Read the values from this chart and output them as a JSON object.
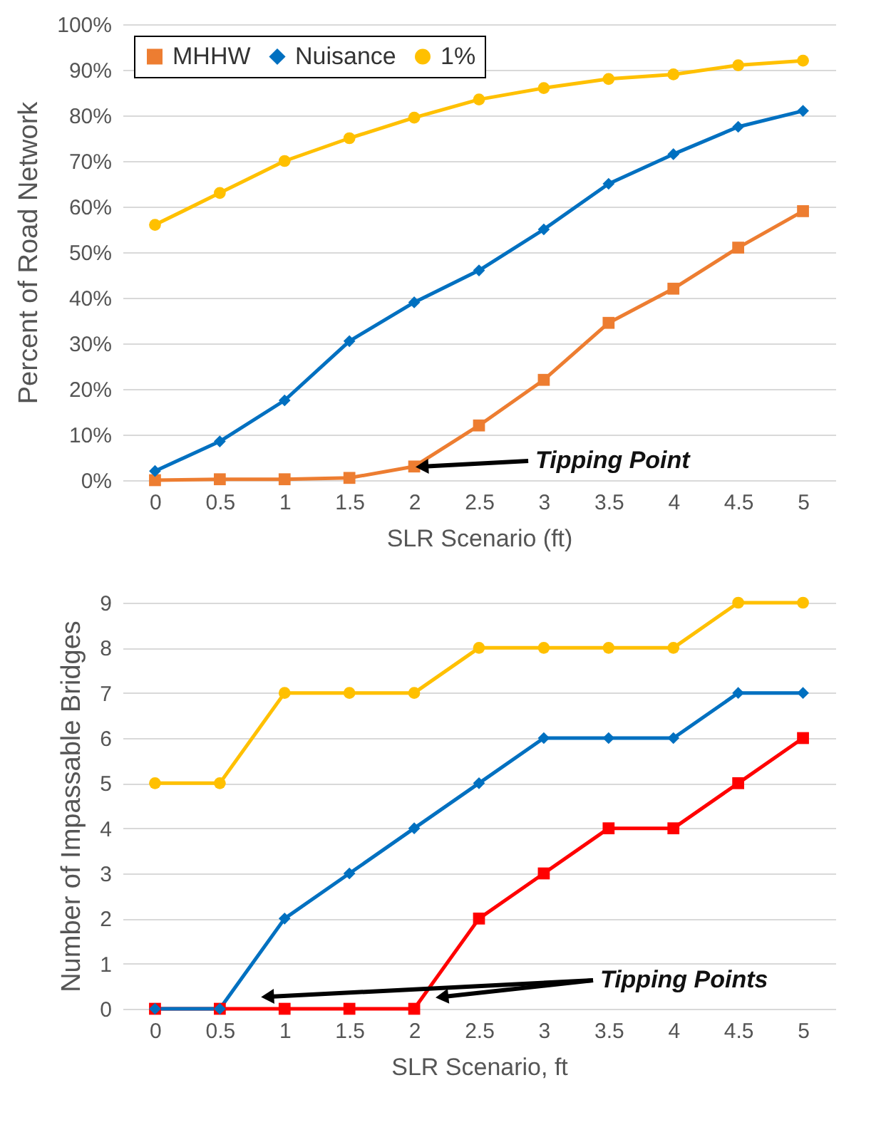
{
  "chart_data": [
    {
      "type": "line",
      "xlabel": "SLR Scenario (ft)",
      "ylabel": "Percent of Road Network",
      "x": [
        0,
        0.5,
        1,
        1.5,
        2,
        2.5,
        3,
        3.5,
        4,
        4.5,
        5
      ],
      "xlim": [
        -0.25,
        5.25
      ],
      "xticks": [
        0,
        0.5,
        1,
        1.5,
        2,
        2.5,
        3,
        3.5,
        4,
        4.5,
        5
      ],
      "ylim": [
        0,
        100
      ],
      "yticks": [
        {
          "value": 0,
          "label": "0%"
        },
        {
          "value": 10,
          "label": "10%"
        },
        {
          "value": 20,
          "label": "20%"
        },
        {
          "value": 30,
          "label": "30%"
        },
        {
          "value": 40,
          "label": "40%"
        },
        {
          "value": 50,
          "label": "50%"
        },
        {
          "value": 60,
          "label": "60%"
        },
        {
          "value": 70,
          "label": "70%"
        },
        {
          "value": 80,
          "label": "80%"
        },
        {
          "value": 90,
          "label": "90%"
        },
        {
          "value": 100,
          "label": "100%"
        }
      ],
      "grid": "y",
      "legend": "top left",
      "line_style": "solid",
      "series": [
        {
          "name": "MHHW",
          "color": "#ed7d31",
          "marker": "square",
          "values": [
            0,
            0.2,
            0.2,
            0.5,
            3,
            12,
            22,
            34.5,
            42,
            51,
            59
          ]
        },
        {
          "name": "Nuisance",
          "color": "#0070c0",
          "marker": "diamond",
          "values": [
            2,
            8.5,
            17.5,
            30.5,
            39,
            46,
            55,
            65,
            71.5,
            77.5,
            81
          ]
        },
        {
          "name": "1%",
          "color": "#ffc000",
          "marker": "circle",
          "values": [
            56,
            63,
            70,
            75,
            79.5,
            83.5,
            86,
            88,
            89,
            91,
            92
          ]
        }
      ],
      "annotations": [
        {
          "text": "Tipping Point",
          "x": 2,
          "y": 3
        }
      ]
    },
    {
      "type": "line",
      "xlabel": "SLR Scenario, ft",
      "ylabel": "Number of Impassable Bridges",
      "x": [
        0,
        0.5,
        1,
        1.5,
        2,
        2.5,
        3,
        3.5,
        4,
        4.5,
        5
      ],
      "xlim": [
        -0.25,
        5.25
      ],
      "xticks": [
        0,
        0.5,
        1,
        1.5,
        2,
        2.5,
        3,
        3.5,
        4,
        4.5,
        5
      ],
      "ylim": [
        0,
        9
      ],
      "yticks": [
        0,
        1,
        2,
        3,
        4,
        5,
        6,
        7,
        8,
        9
      ],
      "grid": "y",
      "line_style": "solid",
      "series": [
        {
          "color": "#ff0000",
          "marker": "square",
          "values": [
            0,
            0,
            0,
            0,
            0,
            2,
            3,
            4,
            4,
            5,
            6
          ]
        },
        {
          "color": "#0070c0",
          "marker": "diamond",
          "values": [
            0,
            0,
            2,
            3,
            4,
            5,
            6,
            6,
            6,
            7,
            7
          ]
        },
        {
          "color": "#ffc000",
          "marker": "circle",
          "values": [
            5,
            5,
            7,
            7,
            7,
            8,
            8,
            8,
            8,
            9,
            9
          ]
        }
      ],
      "annotations": [
        "Tipping Points"
      ]
    }
  ]
}
